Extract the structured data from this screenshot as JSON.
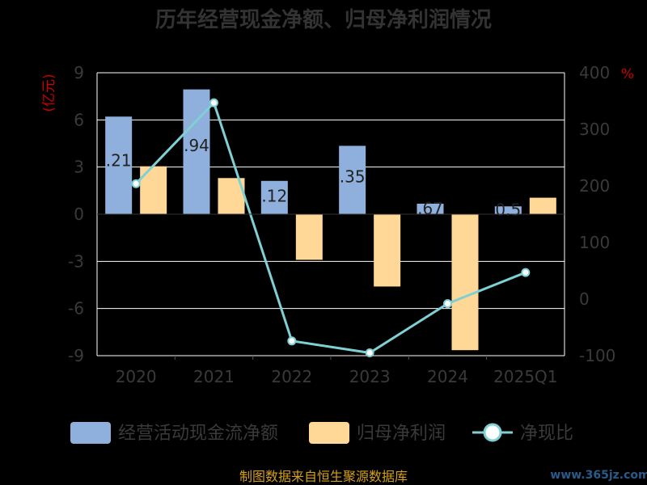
{
  "chart_data": {
    "type": "bar+line",
    "title": "历年经营现金净额、归母净利润情况",
    "categories": [
      "2020",
      "2021",
      "2022",
      "2023",
      "2024",
      "2025Q1"
    ],
    "y_left": {
      "unit": "(亿元)",
      "ylim": [
        -9,
        9
      ],
      "ticks": [
        "9",
        "6",
        "3",
        "0",
        "-3",
        "-6",
        "-9"
      ]
    },
    "y_right": {
      "unit": "%",
      "ylim": [
        -100,
        400
      ],
      "ticks": [
        "400",
        "300",
        "200",
        "100",
        "0",
        "-100"
      ]
    },
    "series": [
      {
        "name": "经营活动现金流净额",
        "type": "bar",
        "axis": "left",
        "color": "#8fb0dc",
        "values": [
          6.21,
          7.94,
          2.12,
          4.35,
          0.67,
          0.5
        ],
        "labels": [
          ".21",
          ".94",
          ".12",
          ".35",
          ".67",
          "0.5"
        ]
      },
      {
        "name": "归母净利润",
        "type": "bar",
        "axis": "left",
        "color": "#ffd898",
        "values": [
          3.05,
          2.3,
          -2.9,
          -4.6,
          -8.65,
          1.05
        ]
      },
      {
        "name": "净现比",
        "type": "line",
        "axis": "right",
        "color": "#7fd0d4",
        "values": [
          204,
          347,
          -74,
          -95,
          -8,
          47
        ]
      }
    ],
    "grid": true,
    "legend_position": "bottom"
  },
  "footer": {
    "source": "制图数据来自恒生聚源数据库",
    "watermark": "www.365jz.com"
  }
}
